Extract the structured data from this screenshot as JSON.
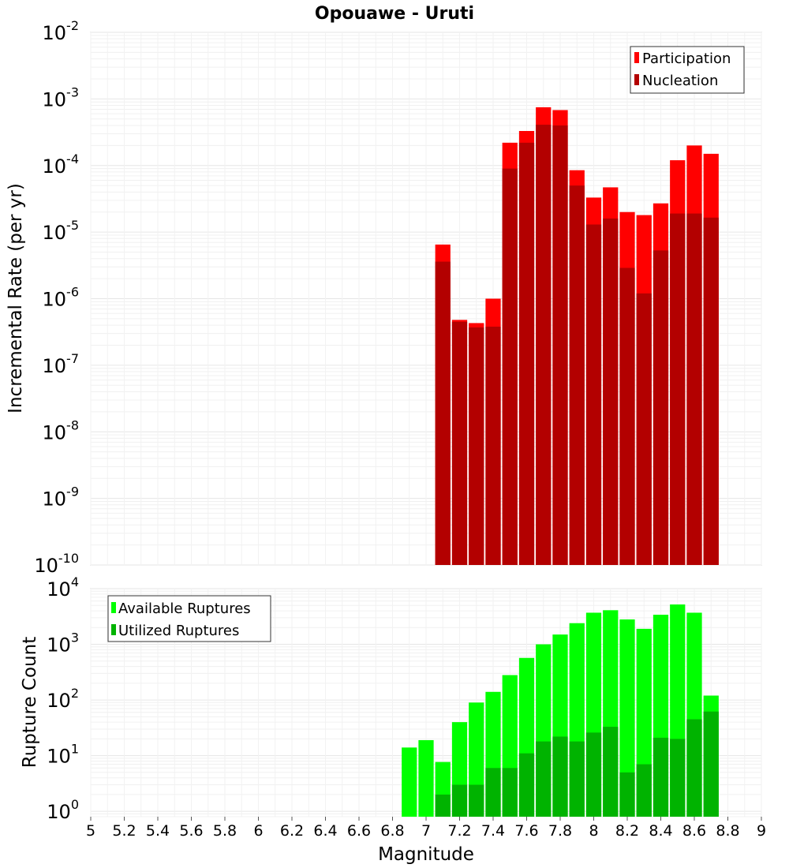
{
  "title": "Opouawe - Uruti",
  "colors": {
    "participation": "#ff0000",
    "nucleation": "#b30000",
    "available": "#00ff00",
    "utilized": "#00b300",
    "grid": "#e6e6e6"
  },
  "chart_data": [
    {
      "type": "bar",
      "scale": "log",
      "ylabel": "Incremental Rate (per yr)",
      "ylim": [
        1e-10,
        0.01
      ],
      "ytick_exponents": [
        "-10",
        "-9",
        "-8",
        "-7",
        "-6",
        "-5",
        "-4",
        "-3",
        "-2"
      ],
      "legend": {
        "position": "top-right",
        "entries": [
          "Participation",
          "Nucleation"
        ]
      },
      "x": [
        7.1,
        7.2,
        7.3,
        7.4,
        7.5,
        7.6,
        7.7,
        7.8,
        7.9,
        8.0,
        8.1,
        8.2,
        8.3,
        8.4,
        8.5,
        8.6,
        8.7
      ],
      "series": [
        {
          "name": "Participation",
          "values": [
            6.5e-06,
            4.8e-07,
            4.3e-07,
            1e-06,
            0.00022,
            0.00033,
            0.00075,
            0.00068,
            8.5e-05,
            3.3e-05,
            4.7e-05,
            2e-05,
            1.8e-05,
            2.7e-05,
            0.00012,
            0.0002,
            0.00015
          ]
        },
        {
          "name": "Nucleation",
          "values": [
            3.6e-06,
            4.5e-07,
            3.7e-07,
            3.8e-07,
            9e-05,
            0.00022,
            0.00041,
            0.0004,
            5e-05,
            1.3e-05,
            1.6e-05,
            2.9e-06,
            1.2e-06,
            5.3e-06,
            1.9e-05,
            1.9e-05,
            1.65e-05
          ]
        }
      ]
    },
    {
      "type": "bar",
      "scale": "log",
      "ylabel": "Rupture Count",
      "xlabel": "Magnitude",
      "ylim": [
        0.8,
        10000
      ],
      "ytick_exponents": [
        "0",
        "1",
        "2",
        "3",
        "4"
      ],
      "xticks": [
        "5",
        "5.2",
        "5.4",
        "5.6",
        "5.8",
        "6",
        "6.2",
        "6.4",
        "6.6",
        "6.8",
        "7",
        "7.2",
        "7.4",
        "7.6",
        "7.8",
        "8",
        "8.2",
        "8.4",
        "8.6",
        "8.8",
        "9"
      ],
      "xlim": [
        5,
        9
      ],
      "legend": {
        "position": "top-left",
        "entries": [
          "Available Ruptures",
          "Utilized Ruptures"
        ]
      },
      "x": [
        6.9,
        7.0,
        7.1,
        7.2,
        7.3,
        7.4,
        7.5,
        7.6,
        7.7,
        7.8,
        7.9,
        8.0,
        8.1,
        8.2,
        8.3,
        8.4,
        8.5,
        8.6,
        8.7
      ],
      "series": [
        {
          "name": "Available Ruptures",
          "values": [
            14,
            19,
            7.7,
            40,
            90,
            140,
            280,
            570,
            1000,
            1500,
            2400,
            3700,
            4100,
            2800,
            1900,
            3400,
            5200,
            3700,
            120
          ]
        },
        {
          "name": "Utilized Ruptures",
          "values": [
            null,
            null,
            2,
            3,
            3,
            6,
            6,
            11,
            18,
            22,
            18,
            26,
            33,
            5,
            7,
            21,
            20,
            45,
            62
          ]
        }
      ]
    }
  ]
}
